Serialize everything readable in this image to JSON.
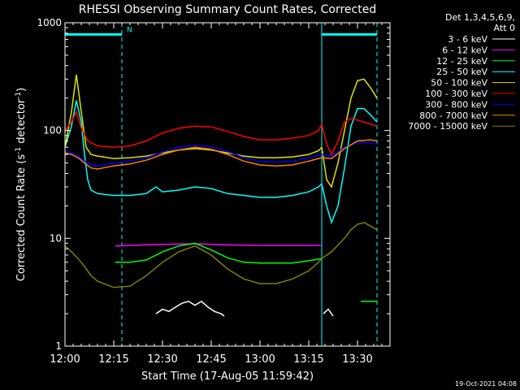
{
  "chart_data": {
    "type": "line",
    "title": "RHESSI Observing Summary Count Rates, Corrected",
    "xlabel": "Start Time (17-Aug-05 11:59:42)",
    "ylabel": "Corrected Count Rate (s⁻¹ detector⁻¹)",
    "ylabel_parts": {
      "main": "Corrected Count Rate (s",
      "exp1": "-1",
      "mid": " detector",
      "exp2": "-1",
      "end": ")"
    },
    "yscale": "log",
    "ylim": [
      1,
      1000
    ],
    "xlim": [
      0,
      100
    ],
    "x_unit": "minutes after 12:00",
    "x_ticks": [
      {
        "label": "12:00",
        "x": 0
      },
      {
        "label": "12:15",
        "x": 15
      },
      {
        "label": "12:30",
        "x": 30
      },
      {
        "label": "12:45",
        "x": 45
      },
      {
        "label": "13:00",
        "x": 60
      },
      {
        "label": "13:15",
        "x": 75
      },
      {
        "label": "13:30",
        "x": 90
      }
    ],
    "y_ticks": [
      {
        "label": "1",
        "y": 1
      },
      {
        "label": "10",
        "y": 10
      },
      {
        "label": "100",
        "y": 100
      },
      {
        "label": "1000",
        "y": 1000
      }
    ],
    "legend": {
      "position": "top-right",
      "header": [
        "Det 1,3,4,5,6,9,",
        "Att 0"
      ]
    },
    "annotations": {
      "night_intervals": [
        [
          0,
          17.5
        ],
        [
          79,
          96
        ]
      ],
      "night_level": 780,
      "solid_markers": [
        0,
        79
      ],
      "dashed_markers": [
        17.5,
        96
      ],
      "text_marker": {
        "text": "N",
        "x": 19,
        "y": 820
      }
    },
    "series": [
      {
        "name": "3 - 6 keV",
        "color": "#ffffff",
        "segments": [
          {
            "x": [
              28.0,
              30.0,
              32.0,
              34.0,
              36.0,
              38.0,
              40.0,
              42.0,
              44.0,
              46.0,
              48.0,
              49.0
            ],
            "y": [
              2.0,
              2.2,
              2.1,
              2.3,
              2.5,
              2.6,
              2.4,
              2.6,
              2.3,
              2.1,
              2.0,
              1.9
            ]
          },
          {
            "x": [
              79.5,
              81.0,
              82.5
            ],
            "y": [
              2.0,
              2.2,
              1.9
            ]
          }
        ]
      },
      {
        "name": "6 - 12 keV",
        "color": "#ff00ff",
        "segments": [
          {
            "x": [
              15.5,
              20.0,
              30.0,
              40.0,
              50.0,
              60.0,
              70.0,
              79.0
            ],
            "y": [
              8.5,
              8.6,
              8.8,
              8.9,
              8.7,
              8.6,
              8.6,
              8.6
            ]
          }
        ]
      },
      {
        "name": "12 - 25 keV",
        "color": "#00ff00",
        "segments": [
          {
            "x": [
              15.5,
              20.0,
              25.0,
              30.0,
              35.0,
              40.0,
              45.0,
              50.0,
              55.0,
              60.0,
              65.0,
              70.0,
              75.0,
              79.0
            ],
            "y": [
              6.0,
              6.0,
              6.3,
              7.5,
              8.5,
              9.0,
              7.8,
              6.6,
              6.0,
              5.9,
              5.9,
              5.9,
              6.2,
              6.5
            ]
          },
          {
            "x": [
              91.0,
              96.0
            ],
            "y": [
              2.6,
              2.6
            ]
          }
        ]
      },
      {
        "name": "25 - 50 keV",
        "color": "#00ffff",
        "segments": [
          {
            "x": [
              0.0,
              2.0,
              3.5,
              5.0,
              6.0,
              7.0,
              8.0,
              10.0,
              15.0,
              20.0,
              25.0,
              28.0,
              30.0,
              35.0,
              40.0,
              45.0,
              50.0,
              55.0,
              60.0,
              65.0,
              70.0,
              75.0,
              78.0,
              79.0
            ],
            "y": [
              70.0,
              110.0,
              190.0,
              120.0,
              60.0,
              35.0,
              28.0,
              26.0,
              25.0,
              25.0,
              26.0,
              30.0,
              27.0,
              28.0,
              30.0,
              29.0,
              26.0,
              25.0,
              24.0,
              24.0,
              25.0,
              27.0,
              30.0,
              32.0
            ]
          },
          {
            "x": [
              79.0,
              80.5,
              82.0,
              84.0,
              86.0,
              88.0,
              90.0,
              92.0,
              94.0,
              96.0
            ],
            "y": [
              32.0,
              20.0,
              14.0,
              20.0,
              45.0,
              110.0,
              160.0,
              160.0,
              140.0,
              120.0
            ]
          }
        ]
      },
      {
        "name": "50 - 100 keV",
        "color": "#e0e000",
        "segments": [
          {
            "x": [
              0.0,
              2.0,
              3.5,
              5.0,
              6.5,
              8.0,
              10.0,
              15.0,
              20.0,
              25.0,
              30.0,
              35.0,
              40.0,
              45.0,
              50.0,
              55.0,
              60.0,
              65.0,
              70.0,
              75.0,
              78.0,
              79.0
            ],
            "y": [
              70.0,
              150.0,
              330.0,
              150.0,
              70.0,
              60.0,
              58.0,
              55.0,
              56.0,
              58.0,
              62.0,
              66.0,
              68.0,
              66.0,
              62.0,
              58.0,
              56.0,
              56.0,
              57.0,
              60.0,
              65.0,
              70.0
            ]
          },
          {
            "x": [
              79.0,
              80.5,
              82.0,
              84.0,
              86.0,
              88.0,
              90.0,
              92.0,
              94.0,
              96.0
            ],
            "y": [
              70.0,
              35.0,
              30.0,
              50.0,
              100.0,
              200.0,
              290.0,
              300.0,
              250.0,
              200.0
            ]
          }
        ]
      },
      {
        "name": "100 - 300 keV",
        "color": "#ff0000",
        "segments": [
          {
            "x": [
              0.0,
              2.0,
              3.5,
              5.0,
              7.0,
              10.0,
              15.0,
              20.0,
              25.0,
              30.0,
              35.0,
              40.0,
              45.0,
              50.0,
              55.0,
              60.0,
              65.0,
              70.0,
              75.0,
              78.0,
              79.0
            ],
            "y": [
              100.0,
              120.0,
              150.0,
              105.0,
              80.0,
              72.0,
              70.0,
              72.0,
              80.0,
              95.0,
              105.0,
              110.0,
              108.0,
              98.0,
              88.0,
              82.0,
              82.0,
              85.0,
              90.0,
              100.0,
              115.0
            ]
          },
          {
            "x": [
              79.0,
              80.5,
              82.0,
              84.0,
              86.0,
              88.0,
              90.0,
              92.0,
              94.0,
              96.0
            ],
            "y": [
              115.0,
              75.0,
              60.0,
              80.0,
              120.0,
              130.0,
              125.0,
              120.0,
              115.0,
              110.0
            ]
          }
        ]
      },
      {
        "name": "300 - 800 keV",
        "color": "#0000ff",
        "segments": [
          {
            "x": [
              0.0,
              2.0,
              4.0,
              6.0,
              8.0,
              10.0,
              15.0,
              20.0,
              25.0,
              30.0,
              35.0,
              40.0,
              45.0,
              50.0,
              55.0,
              60.0,
              65.0,
              70.0,
              75.0,
              79.0
            ],
            "y": [
              65.0,
              62.0,
              58.0,
              52.0,
              48.0,
              47.0,
              50.0,
              52.0,
              56.0,
              63.0,
              70.0,
              73.0,
              70.0,
              64.0,
              56.0,
              52.0,
              51.0,
              52.0,
              56.0,
              60.0
            ]
          },
          {
            "x": [
              79.0,
              82.0,
              86.0,
              90.0,
              94.0,
              96.0
            ],
            "y": [
              60.0,
              58.0,
              70.0,
              78.0,
              77.0,
              75.0
            ]
          }
        ]
      },
      {
        "name": "800 - 7000 keV",
        "color": "#ff8000",
        "segments": [
          {
            "x": [
              0.0,
              2.0,
              4.0,
              6.0,
              8.0,
              10.0,
              15.0,
              20.0,
              25.0,
              30.0,
              35.0,
              40.0,
              45.0,
              50.0,
              55.0,
              60.0,
              65.0,
              70.0,
              75.0,
              79.0
            ],
            "y": [
              62.0,
              60.0,
              56.0,
              50.0,
              45.0,
              44.0,
              47.0,
              49.0,
              53.0,
              60.0,
              66.0,
              70.0,
              67.0,
              60.0,
              52.0,
              48.0,
              47.0,
              48.0,
              52.0,
              56.0
            ]
          },
          {
            "x": [
              79.0,
              82.0,
              86.0,
              90.0,
              94.0,
              96.0
            ],
            "y": [
              56.0,
              55.0,
              68.0,
              80.0,
              82.0,
              80.0
            ]
          }
        ]
      },
      {
        "name": "7000 - 15000 keV",
        "color": "#808000",
        "segments": [
          {
            "x": [
              0.0,
              2.0,
              4.0,
              6.0,
              8.0,
              10.0,
              15.0,
              20.0,
              25.0,
              30.0,
              35.0,
              40.0,
              45.0,
              50.0,
              55.0,
              60.0,
              65.0,
              70.0,
              75.0,
              78.0,
              79.0
            ],
            "y": [
              8.5,
              7.5,
              6.5,
              5.5,
              4.5,
              4.0,
              3.5,
              3.6,
              4.5,
              6.0,
              7.5,
              8.5,
              7.0,
              5.2,
              4.2,
              3.8,
              3.8,
              4.2,
              5.0,
              6.0,
              6.5
            ]
          },
          {
            "x": [
              79.0,
              82.0,
              86.0,
              88.0,
              90.0,
              92.0,
              94.0,
              96.0
            ],
            "y": [
              6.5,
              7.5,
              10.0,
              12.0,
              13.5,
              14.0,
              13.0,
              12.0
            ]
          }
        ]
      }
    ]
  },
  "footer": {
    "timestamp": "19-Oct-2021 04:08"
  }
}
